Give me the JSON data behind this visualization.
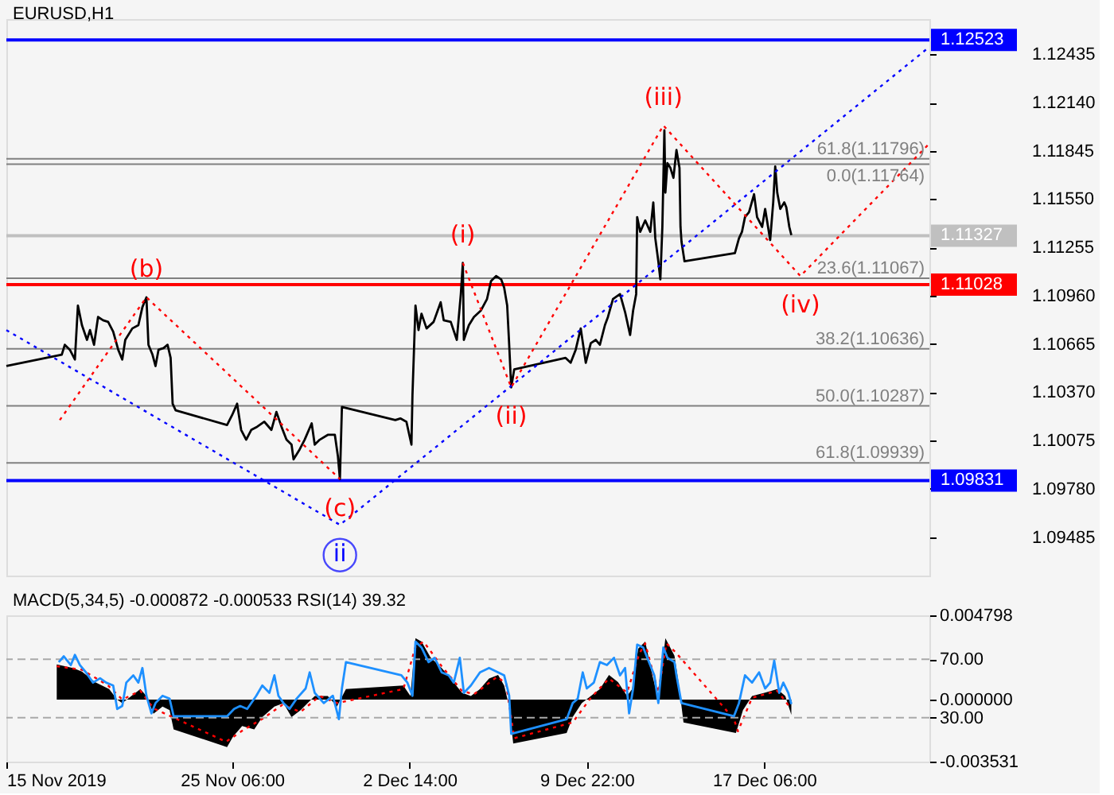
{
  "chart_data": [
    {
      "type": "line",
      "title": "EURUSD,H1",
      "tick_labels": "y",
      "xlim": [
        "2019-11-15T22:00",
        "2019-12-24T02:00"
      ],
      "ylim": [
        1.0925,
        1.1265
      ],
      "yticks": [
        1.12435,
        {
          "value": 1.1214,
          "label": "1.12140"
        },
        1.11845,
        {
          "value": 1.1155,
          "label": "1.11550"
        },
        1.11255,
        {
          "value": 1.1096,
          "label": "1.10960"
        },
        1.10665,
        {
          "value": 1.1037,
          "label": "1.10370"
        },
        1.10075,
        {
          "value": 1.0978,
          "label": "1.09780"
        },
        1.09485
      ],
      "ref_lines": [
        {
          "axis": "y",
          "value": 1.12523,
          "label": "1.12523",
          "color": "#0000ff"
        },
        {
          "axis": "y",
          "value": 1.11796,
          "color": "#808080"
        },
        {
          "axis": "y",
          "value": 1.11764,
          "color": "#808080"
        },
        {
          "axis": "y",
          "value": 1.11327,
          "label": "1.11327",
          "color": "#c0c0c0"
        },
        {
          "axis": "y",
          "value": 1.11067,
          "color": "#808080"
        },
        {
          "axis": "y",
          "value": 1.11028,
          "label": "1.11028",
          "color": "#ff0000"
        },
        {
          "axis": "y",
          "value": 1.10636,
          "color": "#808080"
        },
        {
          "axis": "y",
          "value": 1.10287,
          "color": "#808080"
        },
        {
          "axis": "y",
          "value": 1.09939,
          "color": "#808080"
        },
        {
          "axis": "y",
          "value": 1.09831,
          "label": "1.09831",
          "color": "#0000ff"
        }
      ],
      "series": [
        {
          "color": "#000000",
          "x": [
            "2019-11-15T22:00",
            "2019-11-18T05:00",
            "2019-11-18T08:00",
            "2019-11-18T13:00",
            "2019-11-18T18:00",
            "2019-11-18T21:00",
            "2019-11-19T01:00",
            "2019-11-19T06:00",
            "2019-11-19T09:00",
            "2019-11-19T13:00",
            "2019-11-19T17:00",
            "2019-11-19T22:00",
            "2019-11-20T03:00",
            "2019-11-20T08:00",
            "2019-11-20T13:00",
            "2019-11-20T17:00",
            "2019-11-20T20:00",
            "2019-11-21T03:00",
            "2019-11-21T09:00",
            "2019-11-21T13:00",
            "2019-11-21T17:00",
            "2019-11-21T19:00",
            "2019-11-21T23:00",
            "2019-11-22T02:00",
            "2019-11-22T05:00",
            "2019-11-22T10:00",
            "2019-11-22T14:00",
            "2019-11-22T17:00",
            "2019-11-22T19:00",
            "2019-11-22T22:00",
            "2019-11-25T01:00",
            "2019-11-25T06:00",
            "2019-11-25T11:00",
            "2019-11-25T15:00",
            "2019-11-25T20:00",
            "2019-11-26T01:00",
            "2019-11-26T07:00",
            "2019-11-26T14:00",
            "2019-11-26T21:00",
            "2019-11-27T02:00",
            "2019-11-27T07:00",
            "2019-11-27T12:00",
            "2019-11-27T17:00",
            "2019-11-27T19:00",
            "2019-11-28T01:00",
            "2019-11-28T06:00",
            "2019-11-28T13:00",
            "2019-11-28T16:00",
            "2019-11-28T21:00",
            "2019-11-29T05:00",
            "2019-11-29T12:00",
            "2019-11-29T15:00",
            "2019-11-29T17:00",
            "2019-11-29T19:00",
            "2019-12-02T00:00",
            "2019-12-02T05:00",
            "2019-12-02T11:00",
            "2019-12-02T16:00",
            "2019-12-02T17:00",
            "2019-12-02T20:00",
            "2019-12-02T23:00",
            "2019-12-03T02:00",
            "2019-12-03T07:00",
            "2019-12-03T14:00",
            "2019-12-03T21:00",
            "2019-12-04T00:00",
            "2019-12-04T07:00",
            "2019-12-04T13:00",
            "2019-12-04T17:00",
            "2019-12-04T19:00",
            "2019-12-04T20:00",
            "2019-12-05T01:00",
            "2019-12-05T06:00",
            "2019-12-05T13:00",
            "2019-12-05T19:00",
            "2019-12-05T23:00",
            "2019-12-06T04:00",
            "2019-12-06T09:00",
            "2019-12-06T12:00",
            "2019-12-06T15:00",
            "2019-12-06T17:00",
            "2019-12-06T19:00",
            "2019-12-06T22:00",
            "2019-12-09T01:00",
            "2019-12-09T06:00",
            "2019-12-09T11:00",
            "2019-12-09T16:00",
            "2019-12-09T21:00",
            "2019-12-10T02:00",
            "2019-12-10T07:00",
            "2019-12-10T11:00",
            "2019-12-10T16:00",
            "2019-12-10T19:00",
            "2019-12-11T00:00",
            "2019-12-11T07:00",
            "2019-12-11T12:00",
            "2019-12-11T17:00",
            "2019-12-11T20:00",
            "2019-12-11T23:00",
            "2019-12-12T00:00",
            "2019-12-12T03:00",
            "2019-12-12T08:00",
            "2019-12-12T13:00",
            "2019-12-12T16:00",
            "2019-12-12T18:00",
            "2019-12-12T21:00",
            "2019-12-12T23:00",
            "2019-12-13T01:00",
            "2019-12-13T03:00",
            "2019-12-13T04:00",
            "2019-12-13T06:00",
            "2019-12-13T09:00",
            "2019-12-13T12:00",
            "2019-12-13T15:00",
            "2019-12-13T18:00",
            "2019-12-13T19:00",
            "2019-12-13T20:00",
            "2019-12-13T23:00",
            "2019-12-16T01:00",
            "2019-12-16T05:00",
            "2019-12-16T08:00",
            "2019-12-16T11:00",
            "2019-12-16T15:00",
            "2019-12-16T20:00",
            "2019-12-16T23:00",
            "2019-12-17T04:00",
            "2019-12-17T07:00",
            "2019-12-17T12:00",
            "2019-12-17T15:00",
            "2019-12-17T17:00",
            "2019-12-17T19:00",
            "2019-12-17T22:00",
            "2019-12-18T02:00",
            "2019-12-18T04:00",
            "2019-12-18T07:00",
            "2019-12-18T09:00"
          ],
          "values": [
            1.1053,
            1.106,
            1.1066,
            1.1063,
            1.1057,
            1.109,
            1.1078,
            1.1069,
            1.1075,
            1.1066,
            1.1083,
            1.1081,
            1.108,
            1.1074,
            1.1063,
            1.1057,
            1.1069,
            1.1076,
            1.1078,
            1.1089,
            1.1095,
            1.1066,
            1.106,
            1.1053,
            1.1063,
            1.1064,
            1.1066,
            1.1058,
            1.103,
            1.1026,
            1.1017,
            1.1023,
            1.103,
            1.1014,
            1.1008,
            1.1014,
            1.1016,
            1.1019,
            1.1014,
            1.1025,
            1.1016,
            1.1008,
            1.1005,
            1.0996,
            1.1002,
            1.1008,
            1.1018,
            1.1005,
            1.1008,
            1.1011,
            1.1011,
            1.0998,
            1.0984,
            1.1028,
            1.102,
            1.1021,
            1.1019,
            1.1005,
            1.1035,
            1.109,
            1.1075,
            1.1085,
            1.1076,
            1.108,
            1.1092,
            1.1081,
            1.108,
            1.1069,
            1.1097,
            1.1116,
            1.1069,
            1.1078,
            1.1083,
            1.1087,
            1.1094,
            1.1105,
            1.1108,
            1.1106,
            1.1101,
            1.109,
            1.1066,
            1.104,
            1.1051,
            1.1058,
            1.1055,
            1.1063,
            1.1076,
            1.1055,
            1.1067,
            1.1069,
            1.1066,
            1.1078,
            1.1083,
            1.1094,
            1.1097,
            1.1086,
            1.1072,
            1.1087,
            1.1097,
            1.1144,
            1.1135,
            1.1142,
            1.1135,
            1.1153,
            1.1131,
            1.1117,
            1.1106,
            1.1138,
            1.1197,
            1.1159,
            1.1177,
            1.1174,
            1.1168,
            1.1185,
            1.1174,
            1.1138,
            1.1129,
            1.1117,
            1.1122,
            1.1131,
            1.1135,
            1.1144,
            1.1147,
            1.1158,
            1.1144,
            1.1138,
            1.1149,
            1.113,
            1.1153,
            1.1175,
            1.1159,
            1.1149,
            1.1153,
            1.115,
            1.1138,
            1.1133
          ]
        },
        {
          "color": "#0000ff",
          "line_style": "dotted",
          "x": [
            "2019-11-15T22:00",
            "2019-11-29T17:00",
            "2019-12-24T02:00"
          ],
          "values": [
            1.1075,
            1.0956,
            1.1248
          ]
        },
        {
          "color": "#ff0000",
          "line_style": "dotted",
          "x": [
            "2019-11-18T03:00",
            "2019-11-21T17:00",
            "2019-11-29T17:00"
          ],
          "values": [
            1.102,
            1.1095,
            1.0984
          ]
        },
        {
          "color": "#ff0000",
          "line_style": "dotted",
          "x": [
            "2019-12-04T19:00",
            "2019-12-06T19:00",
            "2019-12-13T02:00",
            "2019-12-18T18:00",
            "2019-12-24T02:00"
          ],
          "values": [
            1.1116,
            1.104,
            1.12,
            1.1108,
            1.1189
          ]
        }
      ],
      "annotations": [
        {
          "text": "(b)",
          "x": "2019-11-21T17:00",
          "y": 1.1095
        },
        {
          "text": "(c)",
          "x": "2019-11-29T17:00",
          "y": 1.0984
        },
        {
          "text": "ii",
          "x": "2019-11-29T17:00",
          "y": 1.0956
        },
        {
          "text": "(i)",
          "x": "2019-12-04T19:00",
          "y": 1.1116
        },
        {
          "text": "(ii)",
          "x": "2019-12-06T19:00",
          "y": 1.104
        },
        {
          "text": "(iii)",
          "x": "2019-12-13T02:00",
          "y": 1.12
        },
        {
          "text": "(iv)",
          "x": "2019-12-18T18:00",
          "y": 1.1108
        },
        {
          "text": "61.8(1.11796)",
          "x": "2019-12-24T02:00",
          "y": 1.11796
        },
        {
          "text": "0.0(1.11764)",
          "x": "2019-12-24T02:00",
          "y": 1.11764
        },
        {
          "text": "23.6(1.11067)",
          "x": "2019-12-24T02:00",
          "y": 1.11067
        },
        {
          "text": "38.2(1.10636)",
          "x": "2019-12-24T02:00",
          "y": 1.10636
        },
        {
          "text": "50.0(1.10287)",
          "x": "2019-12-24T02:00",
          "y": 1.10287
        },
        {
          "text": "61.8(1.09939)",
          "x": "2019-12-24T02:00",
          "y": 1.09939
        }
      ]
    },
    {
      "type": "line",
      "title": "MACD(5,34,5) -0.000872 -0.000533 RSI(14) 39.32",
      "xlim": [
        "2019-11-15T22:00",
        "2019-12-24T02:00"
      ],
      "xticks": [
        {
          "value": "2019-11-15T22:00",
          "label": "15 Nov 2019"
        },
        {
          "value": "2019-11-25T06:00",
          "label": "25 Nov 06:00"
        },
        {
          "value": "2019-12-02T14:00",
          "label": "2 Dec 14:00"
        },
        {
          "value": "2019-12-09T22:00",
          "label": "9 Dec 22:00"
        },
        {
          "value": "2019-12-17T06:00",
          "label": "17 Dec 06:00"
        }
      ],
      "ylim": [
        -0.003531,
        0.004798
      ],
      "yticks": [
        0.004798,
        {
          "value": 0,
          "label": "0.000000"
        },
        -0.003531
      ],
      "y2lim": [
        0,
        100
      ],
      "y2ticks": [
        {
          "value": 70,
          "label": "70.00"
        },
        {
          "value": 30,
          "label": "30.00"
        }
      ],
      "ref_lines": [
        {
          "axis": "y2",
          "value": 70,
          "color": "#a9a9a9",
          "line_style": "dashed"
        },
        {
          "axis": "y2",
          "value": 30,
          "color": "#a9a9a9",
          "line_style": "dashed"
        }
      ],
      "series": [
        {
          "type": "area",
          "color": "#000000",
          "x": [
            "2019-11-18T00:00",
            "2019-11-18T16:00",
            "2019-11-19T01:00",
            "2019-11-19T14:00",
            "2019-11-20T04:00",
            "2019-11-20T12:00",
            "2019-11-20T17:00",
            "2019-11-21T02:00",
            "2019-11-21T11:00",
            "2019-11-21T17:00",
            "2019-11-22T00:00",
            "2019-11-22T09:00",
            "2019-11-22T16:00",
            "2019-11-22T20:00",
            "2019-11-25T01:00",
            "2019-11-25T07:00",
            "2019-11-25T16:00",
            "2019-11-26T04:00",
            "2019-11-26T12:00",
            "2019-11-27T00:00",
            "2019-11-27T09:00",
            "2019-11-27T17:00",
            "2019-11-28T02:00",
            "2019-11-28T16:00",
            "2019-11-29T05:00",
            "2019-11-29T14:00",
            "2019-11-29T23:00",
            "2019-12-02T08:00",
            "2019-12-02T15:00",
            "2019-12-02T20:00",
            "2019-12-03T02:00",
            "2019-12-03T11:00",
            "2019-12-03T22:00",
            "2019-12-04T07:00",
            "2019-12-04T18:00",
            "2019-12-05T03:00",
            "2019-12-05T12:00",
            "2019-12-05T21:00",
            "2019-12-06T06:00",
            "2019-12-06T12:00",
            "2019-12-06T17:00",
            "2019-12-06T21:00",
            "2019-12-09T02:00",
            "2019-12-09T08:00",
            "2019-12-09T17:00",
            "2019-12-10T02:00",
            "2019-12-10T11:00",
            "2019-12-10T20:00",
            "2019-12-11T05:00",
            "2019-12-11T14:00",
            "2019-12-11T19:00",
            "2019-12-12T01:00",
            "2019-12-12T08:00",
            "2019-12-12T15:00",
            "2019-12-12T21:00",
            "2019-12-13T04:00",
            "2019-12-13T13:00",
            "2019-12-13T17:00",
            "2019-12-13T22:00",
            "2019-12-16T02:00",
            "2019-12-16T09:00",
            "2019-12-16T18:00",
            "2019-12-17T07:00",
            "2019-12-17T19:00",
            "2019-12-18T03:00",
            "2019-12-18T09:00"
          ],
          "values": [
            0.002,
            0.0018,
            0.0016,
            0.001,
            0.0006,
            0.0,
            -0.0002,
            0.0002,
            0.0006,
            0.0002,
            -0.0008,
            -0.0004,
            -0.0006,
            -0.0017,
            -0.0027,
            -0.0021,
            -0.0015,
            -0.0017,
            -0.001,
            -0.0004,
            -0.0002,
            -0.001,
            -0.0006,
            0.0002,
            0.0002,
            -0.0004,
            0.0006,
            0.0008,
            0.0002,
            0.0035,
            0.0033,
            0.0024,
            0.0018,
            0.0012,
            0.0004,
            0.0002,
            0.0006,
            0.0012,
            0.0014,
            0.0008,
            -0.0004,
            -0.0025,
            -0.0019,
            -0.001,
            -0.0002,
            0.0002,
            0.0006,
            0.0014,
            0.001,
            0.0002,
            0.0006,
            0.0029,
            0.0033,
            0.0014,
            0.0,
            0.0035,
            0.0025,
            0.001,
            -0.0013,
            -0.0019,
            -0.0006,
            0.0002,
            0.0004,
            0.0006,
            0.0002,
            -0.000872
          ]
        },
        {
          "type": "line",
          "color": "#ff0000",
          "line_style": "dotted",
          "x": [
            "2019-11-18T00:00",
            "2019-11-19T01:00",
            "2019-11-20T03:00",
            "2019-11-20T17:00",
            "2019-11-21T11:00",
            "2019-11-22T00:00",
            "2019-11-25T00:00",
            "2019-11-25T18:00",
            "2019-11-26T12:00",
            "2019-11-27T08:00",
            "2019-11-28T02:00",
            "2019-11-28T21:00",
            "2019-11-29T14:00",
            "2019-12-02T08:00",
            "2019-12-02T20:00",
            "2019-12-03T04:00",
            "2019-12-03T22:00",
            "2019-12-04T18:00",
            "2019-12-05T06:00",
            "2019-12-06T05:00",
            "2019-12-06T14:00",
            "2019-12-06T22:00",
            "2019-12-09T08:00",
            "2019-12-10T02:00",
            "2019-12-10T20:00",
            "2019-12-11T14:00",
            "2019-12-12T02:00",
            "2019-12-12T08:00",
            "2019-12-12T21:00",
            "2019-12-13T05:00",
            "2019-12-13T14:00",
            "2019-12-16T00:00",
            "2019-12-16T04:00",
            "2019-12-16T18:00",
            "2019-12-17T19:00",
            "2019-12-18T09:00"
          ],
          "values": [
            0.0019,
            0.0017,
            0.0008,
            0.0,
            0.0005,
            -0.0005,
            -0.0024,
            -0.0017,
            -0.0011,
            -0.0003,
            -0.0007,
            0.0002,
            -0.0002,
            0.0006,
            0.003,
            0.0033,
            0.0019,
            0.0005,
            0.0003,
            0.0013,
            0.0009,
            -0.0022,
            -0.0013,
            0.0001,
            0.0012,
            0.0004,
            0.0026,
            0.0032,
            0.0004,
            0.0032,
            0.0027,
            -0.0011,
            -0.0018,
            0.0001,
            0.0005,
            -0.000533
          ]
        },
        {
          "type": "line",
          "color": "#1e90ff",
          "axis": "y2",
          "x": [
            "2019-11-18T02:00",
            "2019-11-18T07:00",
            "2019-11-18T14:00",
            "2019-11-18T18:00",
            "2019-11-18T23:00",
            "2019-11-19T05:00",
            "2019-11-19T12:00",
            "2019-11-19T19:00",
            "2019-11-20T01:00",
            "2019-11-20T08:00",
            "2019-11-20T12:00",
            "2019-11-20T17:00",
            "2019-11-20T21:00",
            "2019-11-21T04:00",
            "2019-11-21T09:00",
            "2019-11-21T13:00",
            "2019-11-21T17:00",
            "2019-11-21T22:00",
            "2019-11-22T02:00",
            "2019-11-22T09:00",
            "2019-11-22T16:00",
            "2019-11-22T20:00",
            "2019-11-25T01:00",
            "2019-11-25T08:00",
            "2019-11-25T14:00",
            "2019-11-25T21:00",
            "2019-11-26T06:00",
            "2019-11-26T12:00",
            "2019-11-26T19:00",
            "2019-11-27T00:00",
            "2019-11-27T04:00",
            "2019-11-27T09:00",
            "2019-11-27T15:00",
            "2019-11-27T22:00",
            "2019-11-28T07:00",
            "2019-11-28T11:00",
            "2019-11-28T16:00",
            "2019-11-29T01:00",
            "2019-11-29T10:00",
            "2019-11-29T16:00",
            "2019-11-29T19:00",
            "2019-11-29T23:00",
            "2019-12-02T06:00",
            "2019-12-02T12:00",
            "2019-12-02T17:00",
            "2019-12-02T20:00",
            "2019-12-03T02:00",
            "2019-12-03T09:00",
            "2019-12-03T15:00",
            "2019-12-03T22:00",
            "2019-12-04T05:00",
            "2019-12-04T10:00",
            "2019-12-04T16:00",
            "2019-12-04T20:00",
            "2019-12-05T03:00",
            "2019-12-05T12:00",
            "2019-12-05T21:00",
            "2019-12-06T06:00",
            "2019-12-06T12:00",
            "2019-12-06T17:00",
            "2019-12-06T19:00",
            "2019-12-09T02:00",
            "2019-12-09T08:00",
            "2019-12-09T13:00",
            "2019-12-09T18:00",
            "2019-12-09T22:00",
            "2019-12-10T05:00",
            "2019-12-10T11:00",
            "2019-12-10T18:00",
            "2019-12-11T01:00",
            "2019-12-11T07:00",
            "2019-12-11T12:00",
            "2019-12-11T16:00",
            "2019-12-11T20:00",
            "2019-12-12T00:00",
            "2019-12-12T06:00",
            "2019-12-12T10:00",
            "2019-12-12T17:00",
            "2019-12-12T21:00",
            "2019-12-13T02:00",
            "2019-12-13T06:00",
            "2019-12-13T13:00",
            "2019-12-13T15:00",
            "2019-12-13T20:00",
            "2019-12-16T00:00",
            "2019-12-16T05:00",
            "2019-12-16T11:00",
            "2019-12-16T18:00",
            "2019-12-17T01:00",
            "2019-12-17T07:00",
            "2019-12-17T12:00",
            "2019-12-17T16:00",
            "2019-12-17T21:00",
            "2019-12-18T01:00",
            "2019-12-18T06:00",
            "2019-12-18T09:00"
          ],
          "values": [
            68,
            72,
            66,
            73,
            66,
            61,
            54,
            57,
            54,
            52,
            36,
            38,
            54,
            59,
            54,
            64,
            45,
            33,
            40,
            45,
            43,
            31,
            31,
            36,
            38,
            36,
            45,
            52,
            47,
            59,
            45,
            40,
            36,
            43,
            50,
            61,
            47,
            40,
            45,
            29,
            50,
            68,
            59,
            54,
            45,
            82,
            78,
            68,
            71,
            61,
            59,
            54,
            71,
            47,
            52,
            61,
            64,
            61,
            59,
            45,
            19,
            29,
            40,
            43,
            61,
            50,
            54,
            68,
            66,
            71,
            59,
            64,
            33,
            50,
            80,
            78,
            71,
            59,
            40,
            78,
            71,
            68,
            59,
            40,
            31,
            40,
            59,
            54,
            61,
            50,
            54,
            69,
            47,
            54,
            47,
            39.32
          ]
        }
      ]
    }
  ]
}
